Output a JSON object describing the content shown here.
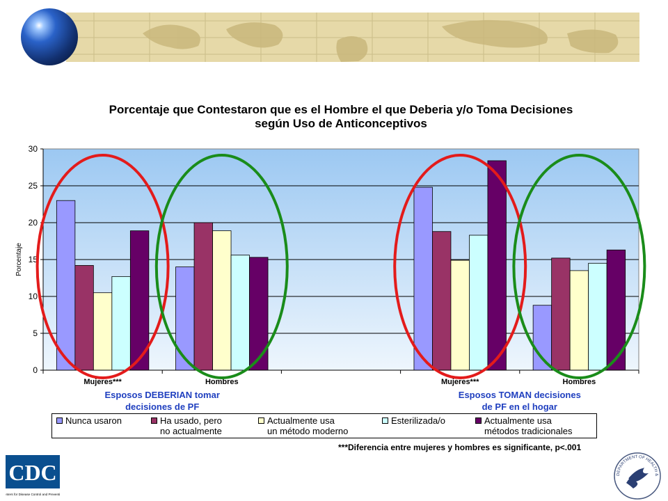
{
  "header": {
    "logo_text": "CDC",
    "logo_subtext": "Centers for Disease Control and Prevention",
    "seal_text": "DEPARTMENT OF HEALTH & HUMAN SERVICES USA"
  },
  "chart_data": {
    "type": "bar",
    "title": "Porcentaje que Contestaron que es el Hombre el que Deberia y/o Toma Decisiones según Uso de Anticonceptivos",
    "title_lines": [
      "Porcentaje que Contestaron que es el Hombre el que Deberia y/o Toma Decisiones",
      "según Uso de Anticonceptivos"
    ],
    "ylabel": "Porcentaje",
    "ylim": [
      0,
      30
    ],
    "yticks": [
      0,
      5,
      10,
      15,
      20,
      25,
      30
    ],
    "grid": true,
    "categories": [
      "Mujeres***",
      "Hombres",
      "Mujeres***",
      "Hombres"
    ],
    "group_labels": [
      {
        "lines": [
          "Esposos DEBERIAN tomar",
          "decisiones de PF"
        ]
      },
      {
        "lines": [
          "Esposos TOMAN decisiones",
          "de PF en el hogar"
        ]
      }
    ],
    "series": [
      {
        "name": "Nunca usaron",
        "legend_lines": [
          "Nunca usaron"
        ],
        "color": "#9999ff",
        "values": [
          23.0,
          14.0,
          24.8,
          8.8
        ]
      },
      {
        "name": "Ha usado, pero no actualmente",
        "legend_lines": [
          "Ha usado, pero",
          "no actualmente"
        ],
        "color": "#993366",
        "values": [
          14.2,
          20.0,
          18.8,
          15.2
        ]
      },
      {
        "name": "Actualmente usa un método moderno",
        "legend_lines": [
          "Actualmente usa",
          "un método moderno"
        ],
        "color": "#ffffcc",
        "values": [
          10.5,
          18.9,
          14.9,
          13.5
        ]
      },
      {
        "name": "Esterilizada/o",
        "legend_lines": [
          "Esterilizada/o"
        ],
        "color": "#ccffff",
        "values": [
          12.7,
          15.6,
          18.3,
          14.5
        ]
      },
      {
        "name": "Actualmente usa métodos tradicionales",
        "legend_lines": [
          "Actualmente usa",
          "métodos tradicionales"
        ],
        "color": "#660066",
        "values": [
          18.9,
          15.3,
          28.4,
          16.3
        ]
      }
    ],
    "legend_position": "bottom",
    "highlight_ellipses": [
      {
        "category": 0,
        "color": "#e31b1b"
      },
      {
        "category": 1,
        "color": "#1a8c1a"
      },
      {
        "category": 2,
        "color": "#e31b1b"
      },
      {
        "category": 3,
        "color": "#1a8c1a"
      }
    ],
    "footnote": "***Diferencia entre mujeres y hombres es significante, p<.001"
  }
}
